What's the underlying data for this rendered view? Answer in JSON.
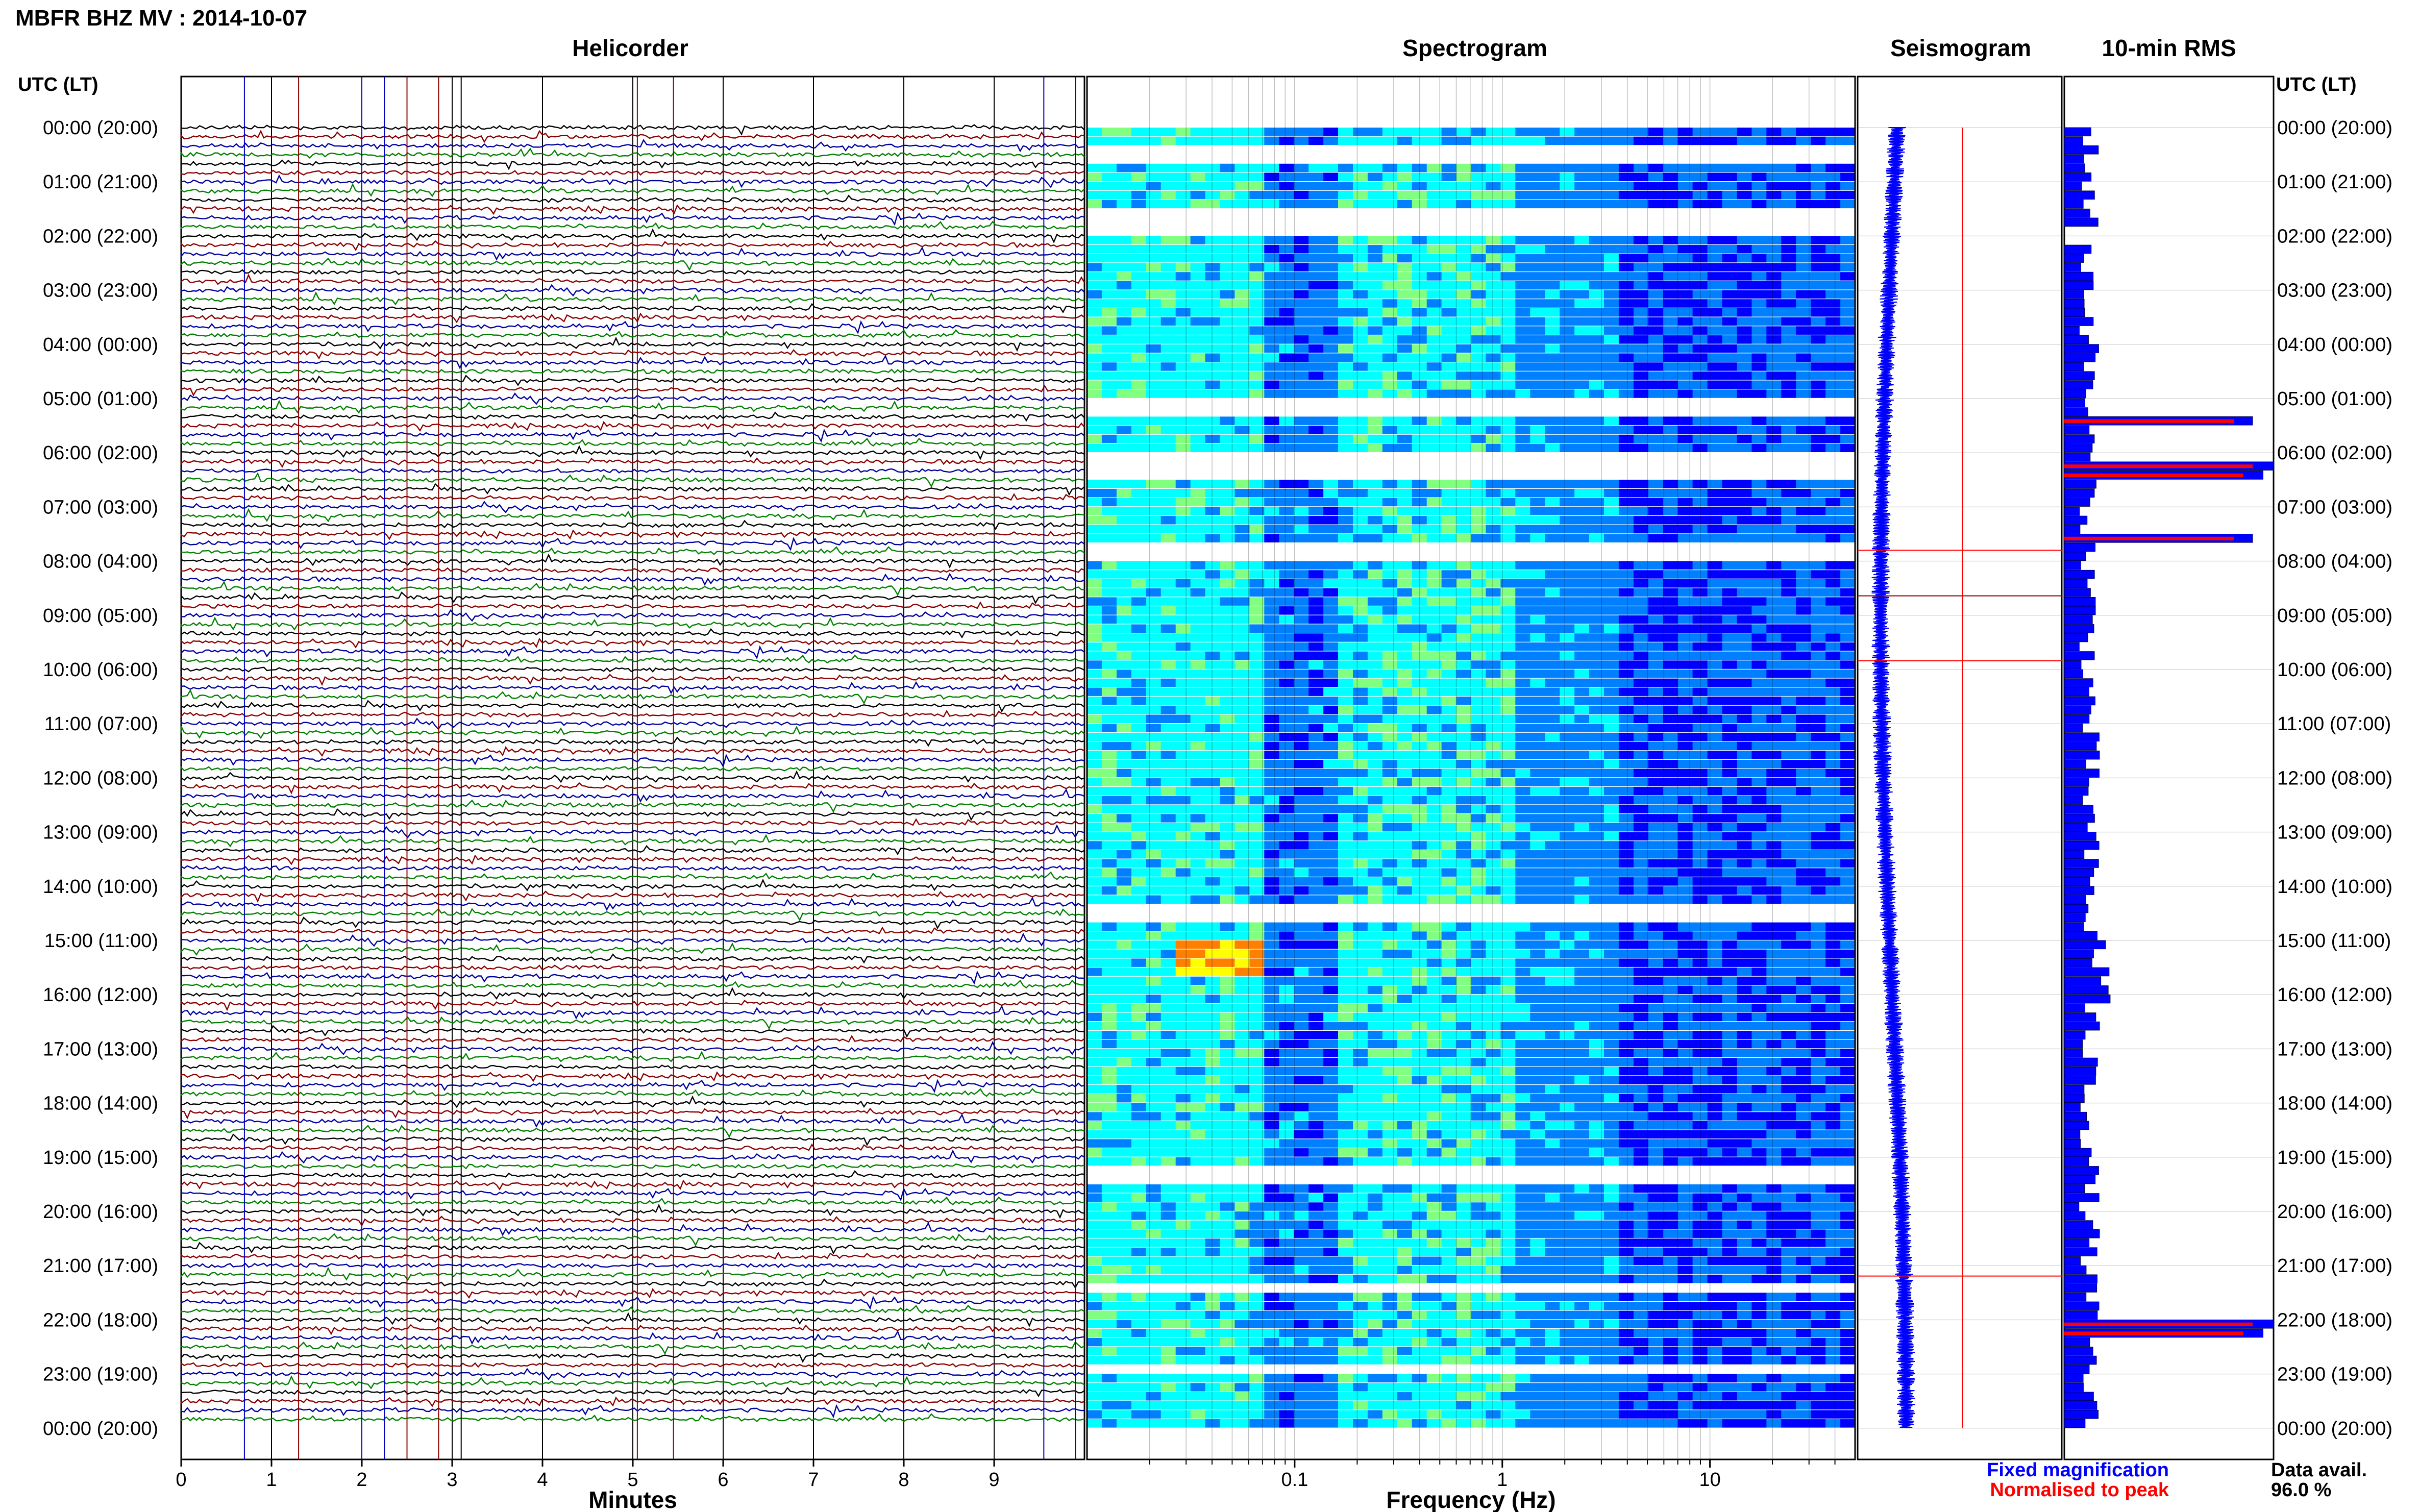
{
  "figure": {
    "title": "MBFR BHZ MV : 2014-10-07",
    "panel_titles": {
      "helicorder": "Helicorder",
      "spectrogram": "Spectrogram",
      "seismogram": "Seismogram",
      "rms": "10-min RMS"
    },
    "time_axis_title": "UTC (LT)",
    "legend": {
      "fixed": "Fixed magnification",
      "normalised": "Normalised to peak",
      "fixed_color": "#0000ff",
      "normalised_color": "#ff0000"
    },
    "data_avail_label": "Data avail.",
    "data_avail_value": "96.0 %"
  },
  "chart_data": [
    {
      "type": "line",
      "name": "helicorder",
      "xlabel": "Minutes",
      "xlim": [
        0,
        10
      ],
      "xticks": [
        "0",
        "1",
        "2",
        "3",
        "4",
        "5",
        "6",
        "7",
        "8",
        "9"
      ],
      "time_labels": [
        "00:00 (20:00)",
        "01:00 (21:00)",
        "02:00 (22:00)",
        "03:00 (23:00)",
        "04:00 (00:00)",
        "05:00 (01:00)",
        "06:00 (02:00)",
        "07:00 (03:00)",
        "08:00 (04:00)",
        "09:00 (05:00)",
        "10:00 (06:00)",
        "11:00 (07:00)",
        "12:00 (08:00)",
        "13:00 (09:00)",
        "14:00 (10:00)",
        "15:00 (11:00)",
        "16:00 (12:00)",
        "17:00 (13:00)",
        "18:00 (14:00)",
        "19:00 (15:00)",
        "20:00 (16:00)",
        "21:00 (17:00)",
        "22:00 (18:00)",
        "23:00 (19:00)",
        "00:00 (20:00)"
      ],
      "trace_colors": [
        "#000000",
        "#8b0000",
        "#0000a0",
        "#008000"
      ],
      "lines_per_hour": 6
    },
    {
      "type": "heatmap",
      "name": "spectrogram",
      "xlabel": "Frequency (Hz)",
      "xscale": "log",
      "xlim": [
        0.01,
        50
      ],
      "xticks": [
        "0.1",
        "1",
        "10"
      ],
      "rows": 144,
      "colormap": [
        "#00007f",
        "#0000ff",
        "#0080ff",
        "#00ffff",
        "#80ff80",
        "#ffff00",
        "#ff8000"
      ]
    },
    {
      "type": "line",
      "name": "seismogram",
      "series": [
        {
          "name": "Fixed magnification",
          "color": "#0000ff"
        },
        {
          "name": "Normalised to peak",
          "color": "#ff0000"
        }
      ]
    },
    {
      "type": "bar",
      "name": "rms",
      "orientation": "horizontal",
      "categories_count": 144,
      "series": [
        {
          "name": "Fixed magnification",
          "color": "#0000ff"
        },
        {
          "name": "Normalised to peak",
          "color": "#ff0000"
        }
      ]
    }
  ]
}
